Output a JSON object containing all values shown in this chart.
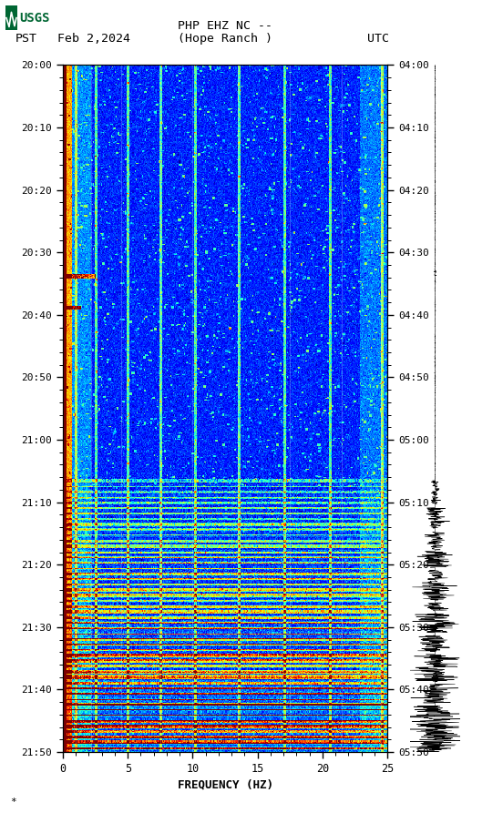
{
  "title_line1": "PHP EHZ NC --",
  "title_line2": "(Hope Ranch )",
  "date_label": "Feb 2,2024",
  "timezone_left": "PST",
  "timezone_right": "UTC",
  "left_times": [
    "20:00",
    "20:10",
    "20:20",
    "20:30",
    "20:40",
    "20:50",
    "21:00",
    "21:10",
    "21:20",
    "21:30",
    "21:40",
    "21:50"
  ],
  "right_times": [
    "04:00",
    "04:10",
    "04:20",
    "04:30",
    "04:40",
    "04:50",
    "05:00",
    "05:10",
    "05:20",
    "05:30",
    "05:40",
    "05:50"
  ],
  "freq_min": 0,
  "freq_max": 25,
  "xlabel": "FREQUENCY (HZ)",
  "colormap": "jet",
  "background_color": "#ffffff",
  "usgs_logo_color": "#006633",
  "vertical_lines_freq": [
    1.0,
    2.2,
    4.5,
    7.5,
    10.0,
    13.5,
    17.5,
    21.5,
    24.5
  ],
  "vmin": -5,
  "vmax": 40
}
